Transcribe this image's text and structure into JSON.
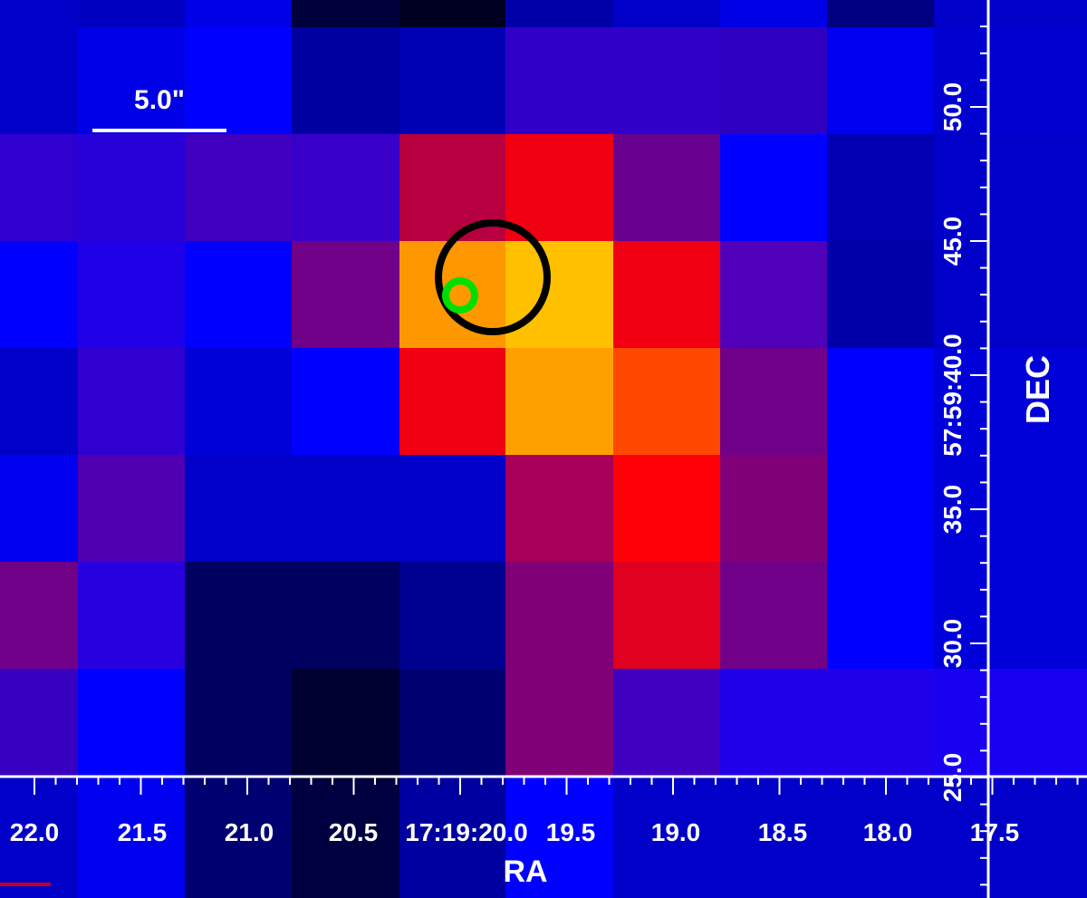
{
  "image": {
    "colormap": "blue-red-yellow heat",
    "pixel_grid": [
      [
        "#0000c8",
        "#0000c0",
        "#0000e6",
        "#00003c",
        "#000020",
        "#0000a8",
        "#0000c8",
        "#0000e6",
        "#000080",
        "#0000c8"
      ],
      [
        "#0000c8",
        "#0000e6",
        "#0000ff",
        "#0000a0",
        "#0000b4",
        "#3000c8",
        "#3000c8",
        "#3000c0",
        "#0000f0",
        "#0000d0"
      ],
      [
        "#3000d0",
        "#2800d8",
        "#4000c0",
        "#3800c8",
        "#b80040",
        "#f00010",
        "#680090",
        "#0000ff",
        "#0000b0",
        "#0000c8"
      ],
      [
        "#0000ff",
        "#2000e8",
        "#0000ff",
        "#700088",
        "#ff9800",
        "#ffc000",
        "#f00010",
        "#5000b8",
        "#0000a8",
        "#0000c8"
      ],
      [
        "#0000c8",
        "#3000d0",
        "#0000d8",
        "#0000ff",
        "#f00010",
        "#ffa000",
        "#ff4800",
        "#700088",
        "#0000ff",
        "#0000d8"
      ],
      [
        "#0000f0",
        "#5000b0",
        "#0000c8",
        "#0000c8",
        "#0000c8",
        "#a80058",
        "#ff0008",
        "#800078",
        "#0000ff",
        "#0000d8"
      ],
      [
        "#700088",
        "#2800e0",
        "#000060",
        "#000060",
        "#000090",
        "#800078",
        "#e00020",
        "#700088",
        "#0000ff",
        "#0000d8"
      ],
      [
        "#3800c0",
        "#0000ff",
        "#000060",
        "#000030",
        "#000070",
        "#800078",
        "#4000c0",
        "#2000e8",
        "#2000e8",
        "#1800f0"
      ],
      [
        "#0000c8",
        "#0000f0",
        "#000070",
        "#000040",
        "#0000a0",
        "#0000ff",
        "#0000c8",
        "#0000c8",
        "#0000c8",
        "#0000c8"
      ]
    ]
  },
  "scale_bar": {
    "label": "5.0\""
  },
  "markers": [
    {
      "name": "black-circle",
      "color": "#000000"
    },
    {
      "name": "green-circle",
      "color": "#00e000"
    }
  ],
  "axes": {
    "x": {
      "label": "RA",
      "ticks": [
        "22.0",
        "21.5",
        "21.0",
        "20.5",
        "17:19:20.0",
        "19.5",
        "19.0",
        "18.5",
        "18.0",
        "17.5"
      ]
    },
    "y": {
      "label": "DEC",
      "ticks": [
        "50.0",
        "45.0",
        "57:59:40.0",
        "35.0",
        "30.0",
        "25.0"
      ]
    }
  }
}
